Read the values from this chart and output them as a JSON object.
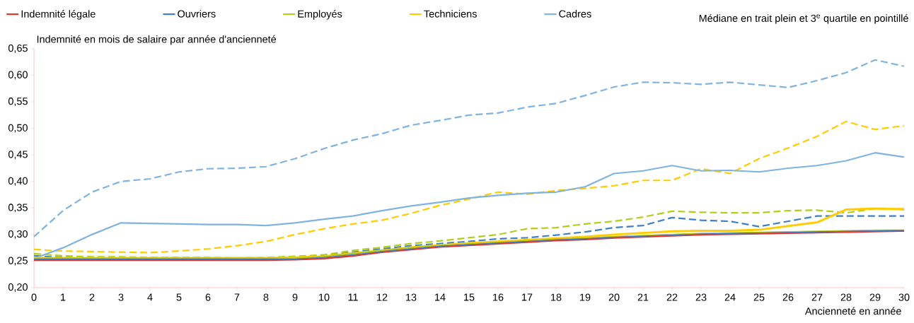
{
  "chart_data": {
    "type": "line",
    "xlabel": "Ancienneté en année",
    "ylabel": "Indemnité en mois de salaire par année d'ancienneté",
    "annotations": [
      "Médiane en trait plein et 3$^{e}$ quartile en pointillé"
    ],
    "x": [
      0,
      1,
      2,
      3,
      4,
      5,
      6,
      7,
      8,
      9,
      10,
      11,
      12,
      13,
      14,
      15,
      16,
      17,
      18,
      19,
      20,
      21,
      22,
      23,
      24,
      25,
      26,
      27,
      28,
      29,
      30
    ],
    "xlim": [
      0,
      30
    ],
    "xticks": [
      0,
      1,
      2,
      3,
      4,
      5,
      6,
      7,
      8,
      9,
      10,
      11,
      12,
      13,
      14,
      15,
      16,
      17,
      18,
      19,
      20,
      21,
      22,
      23,
      24,
      25,
      26,
      27,
      28,
      29,
      30
    ],
    "ylim": [
      0.2,
      0.65
    ],
    "yticks": [
      {
        "value": 0.2,
        "label": "0,20"
      },
      {
        "value": 0.25,
        "label": "0,25"
      },
      {
        "value": 0.3,
        "label": "0,30"
      },
      {
        "value": 0.35,
        "label": "0,35"
      },
      {
        "value": 0.4,
        "label": "0,40"
      },
      {
        "value": 0.45,
        "label": "0,45"
      },
      {
        "value": 0.5,
        "label": "0,50"
      },
      {
        "value": 0.55,
        "label": "0,55"
      },
      {
        "value": 0.6,
        "label": "0,60"
      },
      {
        "value": 0.65,
        "label": "0,65"
      }
    ],
    "grid": false,
    "legend": "top",
    "marker": "none",
    "series": [
      {
        "name": "Indemnité légale",
        "color": "#e3342f",
        "line_style": "solid",
        "values": [
          0.252,
          0.252,
          0.252,
          0.252,
          0.252,
          0.252,
          0.252,
          0.252,
          0.252,
          0.253,
          0.255,
          0.26,
          0.267,
          0.272,
          0.277,
          0.28,
          0.283,
          0.286,
          0.289,
          0.291,
          0.294,
          0.296,
          0.298,
          0.3,
          0.301,
          0.302,
          0.303,
          0.304,
          0.305,
          0.306,
          0.307
        ]
      },
      {
        "name": "Ouvriers",
        "color": "#3f7fc6",
        "line_style": "solid",
        "values": [
          0.254,
          0.254,
          0.254,
          0.254,
          0.254,
          0.254,
          0.254,
          0.254,
          0.254,
          0.254,
          0.257,
          0.262,
          0.268,
          0.273,
          0.278,
          0.281,
          0.284,
          0.287,
          0.29,
          0.292,
          0.295,
          0.297,
          0.299,
          0.301,
          0.302,
          0.303,
          0.304,
          0.305,
          0.306,
          0.307,
          0.308
        ]
      },
      {
        "color": "#3f7fc6",
        "line_style": "dashed",
        "values": [
          0.26,
          0.257,
          0.255,
          0.255,
          0.254,
          0.254,
          0.254,
          0.254,
          0.254,
          0.256,
          0.26,
          0.267,
          0.273,
          0.279,
          0.283,
          0.287,
          0.292,
          0.294,
          0.299,
          0.305,
          0.313,
          0.317,
          0.332,
          0.327,
          0.325,
          0.315,
          0.325,
          0.335,
          0.335,
          0.335,
          0.335
        ]
      },
      {
        "name": "Employés",
        "color": "#b5cc18",
        "line_style": "solid",
        "values": [
          0.255,
          0.255,
          0.255,
          0.255,
          0.255,
          0.255,
          0.255,
          0.255,
          0.255,
          0.255,
          0.258,
          0.264,
          0.27,
          0.275,
          0.279,
          0.282,
          0.285,
          0.288,
          0.291,
          0.293,
          0.296,
          0.298,
          0.3,
          0.302,
          0.303,
          0.304,
          0.305,
          0.306,
          0.307,
          0.308,
          0.308
        ]
      },
      {
        "color": "#b5cc18",
        "line_style": "dashed",
        "values": [
          0.264,
          0.26,
          0.258,
          0.258,
          0.257,
          0.257,
          0.257,
          0.256,
          0.257,
          0.259,
          0.262,
          0.27,
          0.276,
          0.283,
          0.288,
          0.294,
          0.3,
          0.311,
          0.313,
          0.32,
          0.325,
          0.333,
          0.344,
          0.342,
          0.341,
          0.341,
          0.345,
          0.346,
          0.341,
          0.349,
          0.347
        ]
      },
      {
        "name": "Techniciens",
        "color": "#ffcc00",
        "line_style": "solid",
        "values": [
          0.256,
          0.256,
          0.256,
          0.256,
          0.256,
          0.256,
          0.256,
          0.256,
          0.256,
          0.257,
          0.259,
          0.265,
          0.27,
          0.276,
          0.28,
          0.284,
          0.287,
          0.29,
          0.293,
          0.296,
          0.3,
          0.303,
          0.306,
          0.307,
          0.307,
          0.309,
          0.316,
          0.323,
          0.347,
          0.349,
          0.348
        ]
      },
      {
        "color": "#ffcc00",
        "line_style": "dashed",
        "values": [
          0.272,
          0.269,
          0.268,
          0.267,
          0.266,
          0.269,
          0.273,
          0.279,
          0.287,
          0.3,
          0.311,
          0.32,
          0.327,
          0.34,
          0.355,
          0.367,
          0.38,
          0.376,
          0.383,
          0.387,
          0.392,
          0.402,
          0.402,
          0.424,
          0.415,
          0.443,
          0.463,
          0.485,
          0.513,
          0.498,
          0.505
        ]
      },
      {
        "name": "Cadres",
        "color": "#7fb3e0",
        "line_style": "solid",
        "values": [
          0.255,
          0.275,
          0.3,
          0.322,
          0.321,
          0.32,
          0.319,
          0.319,
          0.317,
          0.322,
          0.329,
          0.335,
          0.345,
          0.354,
          0.361,
          0.369,
          0.374,
          0.378,
          0.38,
          0.39,
          0.415,
          0.42,
          0.43,
          0.42,
          0.421,
          0.418,
          0.425,
          0.43,
          0.439,
          0.454,
          0.446
        ]
      },
      {
        "color": "#7fb3e0",
        "line_style": "dashed",
        "values": [
          0.296,
          0.345,
          0.38,
          0.4,
          0.405,
          0.418,
          0.424,
          0.425,
          0.428,
          0.443,
          0.462,
          0.478,
          0.49,
          0.506,
          0.515,
          0.525,
          0.529,
          0.54,
          0.547,
          0.562,
          0.578,
          0.587,
          0.586,
          0.583,
          0.587,
          0.582,
          0.577,
          0.59,
          0.605,
          0.629,
          0.617
        ]
      }
    ]
  }
}
